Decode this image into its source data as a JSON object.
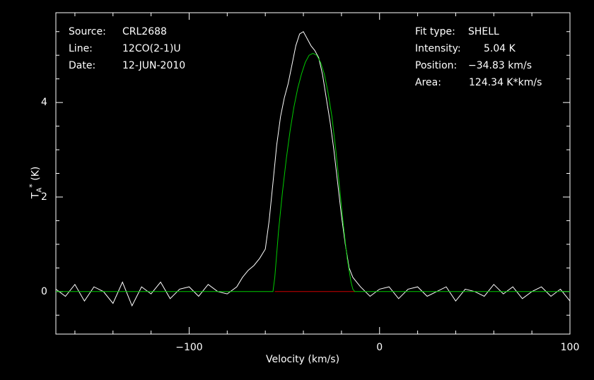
{
  "info_left": [
    {
      "key": "Source:",
      "value": "CRL2688"
    },
    {
      "key": "Line:",
      "value": "12CO(2-1)U"
    },
    {
      "key": "Date:",
      "value": "12-JUN-2010"
    }
  ],
  "info_right": [
    {
      "key": "Fit type:",
      "value": "SHELL"
    },
    {
      "key": "Intensity:",
      "value": "5.04 K"
    },
    {
      "key": "Position:",
      "value": "−34.83 km/s"
    },
    {
      "key": "Area:",
      "value": "124.34 K*km/s"
    }
  ],
  "colors": {
    "background": "#000000",
    "data": "#ffffff",
    "fit": "#00cc00",
    "baseline": "#cc0000",
    "axes": "#ffffff"
  },
  "chart_data": {
    "type": "line",
    "xlabel": "Velocity (km/s)",
    "ylabel_main": "T",
    "ylabel_sub": "A",
    "ylabel_sup": "*",
    "ylabel_unit": " (K)",
    "xlim": [
      -170,
      100
    ],
    "ylim": [
      -0.9,
      5.9
    ],
    "x_ticks": [
      -100,
      0,
      100
    ],
    "x_tick_labels": [
      "−100",
      "0",
      "100"
    ],
    "y_ticks": [
      0,
      2,
      4
    ],
    "y_tick_labels": [
      "0",
      "2",
      "4"
    ],
    "grid": false,
    "series": [
      {
        "role": "observed spectrum",
        "x": [
          -170,
          -165,
          -160,
          -155,
          -150,
          -145,
          -140,
          -135,
          -130,
          -125,
          -120,
          -115,
          -110,
          -105,
          -100,
          -95,
          -90,
          -85,
          -80,
          -75,
          -72,
          -69,
          -66,
          -63,
          -60,
          -58,
          -56,
          -54,
          -52,
          -50,
          -48,
          -46,
          -44,
          -42,
          -40,
          -38,
          -36,
          -34,
          -32,
          -30,
          -28,
          -26,
          -24,
          -22,
          -20,
          -18,
          -16,
          -14,
          -12,
          -10,
          -5,
          0,
          5,
          10,
          15,
          20,
          25,
          30,
          35,
          40,
          45,
          50,
          55,
          60,
          65,
          70,
          75,
          80,
          85,
          90,
          95,
          100
        ],
        "y": [
          0.05,
          -0.1,
          0.15,
          -0.2,
          0.1,
          0.0,
          -0.25,
          0.2,
          -0.3,
          0.1,
          -0.05,
          0.2,
          -0.15,
          0.05,
          0.1,
          -0.1,
          0.15,
          0.0,
          -0.05,
          0.1,
          0.3,
          0.45,
          0.55,
          0.7,
          0.9,
          1.5,
          2.3,
          3.1,
          3.7,
          4.1,
          4.4,
          4.8,
          5.2,
          5.45,
          5.5,
          5.35,
          5.2,
          5.1,
          4.95,
          4.6,
          4.1,
          3.6,
          3.0,
          2.3,
          1.6,
          1.0,
          0.5,
          0.3,
          0.2,
          0.1,
          -0.1,
          0.05,
          0.1,
          -0.15,
          0.05,
          0.1,
          -0.1,
          0.0,
          0.1,
          -0.2,
          0.05,
          0.0,
          -0.1,
          0.15,
          -0.05,
          0.1,
          -0.15,
          0.0,
          0.1,
          -0.1,
          0.05,
          -0.2
        ]
      },
      {
        "role": "shell fit",
        "x": [
          -170,
          -56,
          -55,
          -53,
          -51,
          -49,
          -47,
          -45,
          -43,
          -41,
          -39,
          -37,
          -35,
          -33,
          -31,
          -29,
          -27,
          -25,
          -23,
          -21,
          -19,
          -17,
          -15,
          -14,
          -13,
          100
        ],
        "y": [
          0,
          0,
          0.3,
          1.3,
          2.1,
          2.8,
          3.4,
          3.9,
          4.3,
          4.6,
          4.85,
          5.0,
          5.04,
          5.0,
          4.85,
          4.6,
          4.2,
          3.7,
          3.0,
          2.2,
          1.4,
          0.7,
          0.2,
          0.05,
          0,
          0
        ]
      },
      {
        "role": "baseline window",
        "x": [
          -55,
          -13
        ],
        "y": [
          0,
          0
        ]
      }
    ]
  }
}
